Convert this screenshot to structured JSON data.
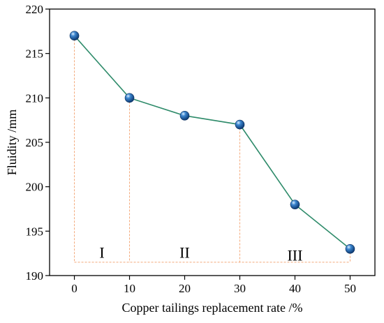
{
  "chart_data": {
    "type": "line",
    "x": [
      0,
      10,
      20,
      30,
      40,
      50
    ],
    "y": [
      217,
      210,
      208,
      207,
      198,
      193
    ],
    "xlabel": "Copper tailings replacement rate /%",
    "ylabel": "Fluidity /mm",
    "xlim": [
      -4.5,
      54.5
    ],
    "ylim": [
      190,
      220
    ],
    "xticks": [
      0,
      10,
      20,
      30,
      40,
      50
    ],
    "yticks": [
      190,
      195,
      200,
      205,
      210,
      215,
      220
    ],
    "regions": [
      {
        "label": "I",
        "x": 5,
        "y": 192
      },
      {
        "label": "II",
        "x": 20,
        "y": 192
      },
      {
        "label": "III",
        "x": 40,
        "y": 191.7
      }
    ],
    "guide_lines_x": [
      0,
      10,
      30,
      50
    ],
    "guide_baseline_y": 191.5,
    "colors": {
      "line": "#2e8b6a",
      "marker": "#1f5fa8",
      "guides": "#f4a97a"
    },
    "grid": false,
    "legend": "none"
  }
}
